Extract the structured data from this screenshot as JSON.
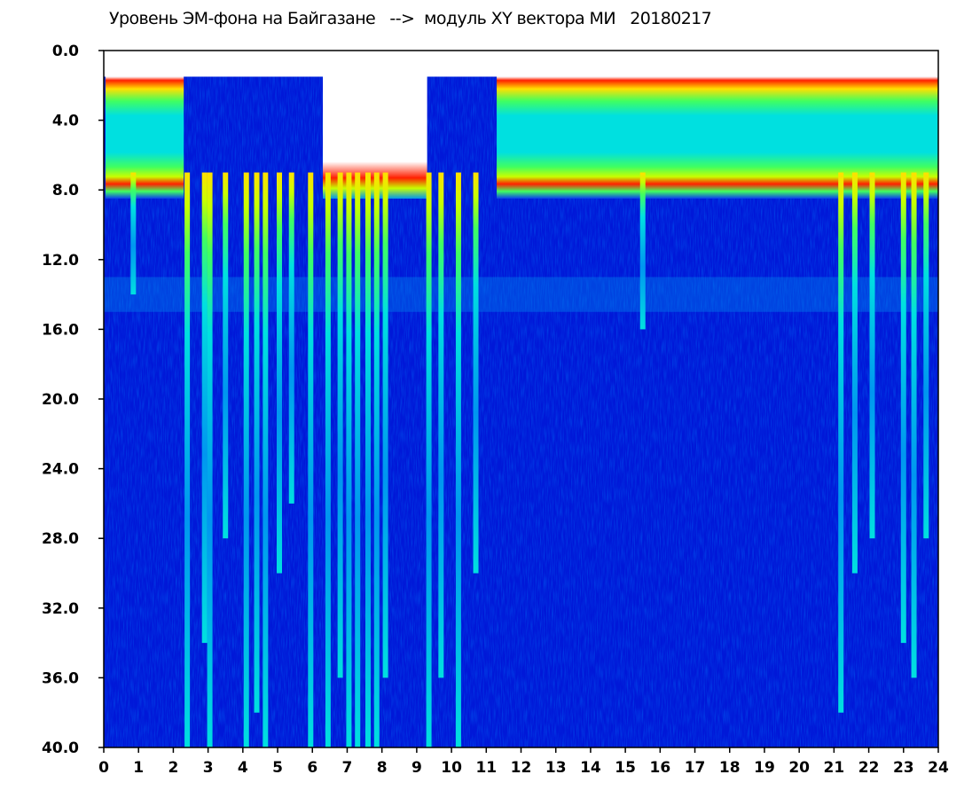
{
  "chart_data": {
    "type": "heatmap",
    "title": "Уровень ЭМ-фона на Байгазане   -->  модуль XY вектора МИ   20180217",
    "xlabel": "",
    "ylabel": "",
    "xlim": [
      0,
      24
    ],
    "ylim": [
      0,
      40
    ],
    "y_inverted": true,
    "x_ticks": [
      0,
      1,
      2,
      3,
      4,
      5,
      6,
      7,
      8,
      9,
      10,
      11,
      12,
      13,
      14,
      15,
      16,
      17,
      18,
      19,
      20,
      21,
      22,
      23,
      24
    ],
    "x_tick_labels": [
      "0",
      "1",
      "2",
      "3",
      "4",
      "5",
      "6",
      "7",
      "8",
      "9",
      "10",
      "11",
      "12",
      "13",
      "14",
      "15",
      "16",
      "17",
      "18",
      "19",
      "20",
      "21",
      "22",
      "23",
      "24"
    ],
    "y_ticks": [
      0,
      4,
      8,
      12,
      16,
      20,
      24,
      28,
      32,
      36,
      40
    ],
    "y_tick_labels": [
      "0.0",
      "4.0",
      "8.0",
      "12.0",
      "16.0",
      "20.0",
      "24.0",
      "28.0",
      "32.0",
      "36.0",
      "40.0"
    ],
    "grid": false,
    "colorscale": [
      "#0018d8",
      "#0a3cf0",
      "#0096f0",
      "#00e0e0",
      "#40ff60",
      "#c8ff00",
      "#ffe000",
      "#ff2000",
      "#ffffff"
    ],
    "colors": {
      "background": "#ffffff",
      "low": "#0018d8",
      "high": "#ff2000"
    },
    "features": [
      {
        "kind": "upper-band",
        "x_range": [
          0.05,
          2.3
        ],
        "y_range": [
          1.5,
          8.5
        ]
      },
      {
        "kind": "gap-white",
        "x_range": [
          6.3,
          9.3
        ],
        "y_range": [
          0,
          8.5
        ]
      },
      {
        "kind": "upper-band",
        "x_range": [
          11.3,
          24
        ],
        "y_range": [
          1.5,
          8.5
        ]
      },
      {
        "kind": "secondary-band",
        "x_range": [
          0,
          24
        ],
        "y_range": [
          13,
          15
        ]
      }
    ],
    "streaks": [
      {
        "x": 0.85,
        "depth": 14
      },
      {
        "x": 2.4,
        "depth": 40
      },
      {
        "x": 2.9,
        "depth": 34
      },
      {
        "x": 3.05,
        "depth": 40
      },
      {
        "x": 3.5,
        "depth": 28
      },
      {
        "x": 4.1,
        "depth": 40
      },
      {
        "x": 4.4,
        "depth": 38
      },
      {
        "x": 4.65,
        "depth": 40
      },
      {
        "x": 5.05,
        "depth": 30
      },
      {
        "x": 5.4,
        "depth": 26
      },
      {
        "x": 5.95,
        "depth": 40
      },
      {
        "x": 6.45,
        "depth": 40
      },
      {
        "x": 6.8,
        "depth": 36
      },
      {
        "x": 7.05,
        "depth": 40
      },
      {
        "x": 7.3,
        "depth": 40
      },
      {
        "x": 7.6,
        "depth": 40
      },
      {
        "x": 7.85,
        "depth": 40
      },
      {
        "x": 8.1,
        "depth": 36
      },
      {
        "x": 9.35,
        "depth": 40
      },
      {
        "x": 9.7,
        "depth": 36
      },
      {
        "x": 10.2,
        "depth": 40
      },
      {
        "x": 10.7,
        "depth": 30
      },
      {
        "x": 15.5,
        "depth": 16
      },
      {
        "x": 21.2,
        "depth": 38
      },
      {
        "x": 21.6,
        "depth": 30
      },
      {
        "x": 22.1,
        "depth": 28
      },
      {
        "x": 23.0,
        "depth": 34
      },
      {
        "x": 23.3,
        "depth": 36
      },
      {
        "x": 23.65,
        "depth": 28
      }
    ]
  }
}
